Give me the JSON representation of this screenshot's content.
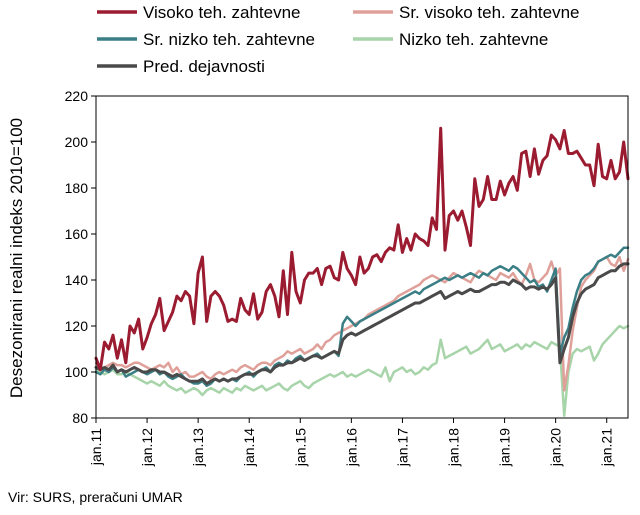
{
  "chart_data": {
    "type": "line",
    "ylabel": "Desezonirani realni indeks 2010=100",
    "xlabel": "",
    "ylim": [
      80,
      220
    ],
    "yticks": [
      80,
      100,
      120,
      140,
      160,
      180,
      200,
      220
    ],
    "xticks": [
      "jan.11",
      "jan.12",
      "jan.13",
      "jan.14",
      "jan.15",
      "jan.16",
      "jan.17",
      "jan.18",
      "jan.19",
      "jan.20",
      "jan.21"
    ],
    "grid": false,
    "legend_position": "top",
    "source": "Vir: SURS, preračuni UMAR",
    "x_start": "2011-01",
    "series": [
      {
        "name": "Visoko teh. zahtevne",
        "color": "#9b1b30",
        "values": [
          106,
          101,
          113,
          110,
          116,
          106,
          114,
          104,
          120,
          117,
          123,
          110,
          115,
          121,
          125,
          132,
          118,
          122,
          126,
          133,
          131,
          135,
          133,
          121,
          143,
          150,
          122,
          133,
          135,
          133,
          129,
          122,
          123,
          122,
          132,
          127,
          125,
          134,
          123,
          126,
          135,
          138,
          133,
          124,
          144,
          125,
          152,
          135,
          130,
          140,
          143,
          143,
          145,
          138,
          145,
          146,
          141,
          140,
          152,
          145,
          142,
          138,
          150,
          143,
          145,
          150,
          151,
          148,
          152,
          154,
          153,
          164,
          152,
          158,
          153,
          160,
          158,
          157,
          155,
          167,
          162,
          206,
          153,
          168,
          170,
          166,
          170,
          163,
          155,
          184,
          172,
          175,
          185,
          175,
          175,
          183,
          177,
          182,
          185,
          179,
          195,
          196,
          185,
          197,
          186,
          192,
          194,
          203,
          201,
          197,
          205,
          195,
          195,
          196,
          193,
          190,
          190,
          181,
          199,
          185,
          184,
          192,
          184,
          187,
          200,
          184
        ],
        "stroke_width": 3
      },
      {
        "name": "Sr. visoko teh. zahtevne",
        "color": "#e0a09a",
        "values": [
          104,
          101,
          102,
          103,
          104,
          103,
          103,
          102,
          103,
          104,
          104,
          103,
          102,
          101,
          102,
          103,
          102,
          104,
          100,
          102,
          99,
          100,
          98,
          98,
          99,
          100,
          98,
          97,
          99,
          100,
          99,
          100,
          101,
          100,
          102,
          103,
          102,
          101,
          103,
          104,
          104,
          103,
          105,
          106,
          107,
          109,
          108,
          109,
          110,
          108,
          109,
          110,
          112,
          110,
          113,
          114,
          116,
          117,
          118,
          119,
          120,
          121,
          122,
          123,
          125,
          126,
          127,
          128,
          129,
          130,
          131,
          133,
          134,
          135,
          136,
          137,
          138,
          140,
          141,
          142,
          141,
          140,
          139,
          141,
          143,
          142,
          141,
          140,
          139,
          142,
          144,
          143,
          142,
          141,
          140,
          143,
          142,
          141,
          143,
          140,
          138,
          142,
          147,
          140,
          139,
          141,
          143,
          148,
          142,
          145,
          92,
          103,
          118,
          128,
          137,
          140,
          142,
          144,
          148,
          149,
          150,
          147,
          146,
          150,
          144,
          149
        ],
        "stroke_width": 2.5
      },
      {
        "name": "Sr. nizko teh. zahtevne",
        "color": "#3b7f86",
        "values": [
          100,
          99,
          101,
          100,
          102,
          100,
          101,
          98,
          99,
          100,
          101,
          100,
          99,
          100,
          101,
          99,
          100,
          98,
          97,
          98,
          99,
          97,
          96,
          95,
          95,
          96,
          94,
          95,
          97,
          96,
          97,
          96,
          97,
          96,
          98,
          99,
          100,
          98,
          100,
          101,
          102,
          100,
          103,
          104,
          103,
          105,
          104,
          106,
          107,
          105,
          106,
          107,
          108,
          106,
          107,
          108,
          109,
          107,
          121,
          124,
          122,
          120,
          122,
          123,
          124,
          125,
          126,
          127,
          128,
          129,
          130,
          131,
          132,
          133,
          134,
          135,
          134,
          136,
          137,
          138,
          139,
          140,
          141,
          140,
          141,
          142,
          141,
          142,
          143,
          142,
          141,
          143,
          142,
          144,
          145,
          146,
          145,
          144,
          146,
          145,
          143,
          141,
          139,
          140,
          137,
          138,
          135,
          140,
          145,
          108,
          115,
          119,
          128,
          135,
          140,
          142,
          143,
          145,
          148,
          149,
          150,
          151,
          150,
          152,
          154,
          154
        ],
        "stroke_width": 2.5
      },
      {
        "name": "Nizko teh. zahtevne",
        "color": "#a8d4aa",
        "values": [
          101,
          100,
          99,
          100,
          101,
          99,
          99,
          100,
          99,
          98,
          97,
          96,
          95,
          96,
          95,
          94,
          96,
          94,
          93,
          92,
          93,
          91,
          92,
          93,
          92,
          90,
          92,
          93,
          92,
          91,
          93,
          92,
          91,
          93,
          92,
          94,
          93,
          92,
          93,
          94,
          92,
          93,
          94,
          95,
          93,
          92,
          94,
          95,
          96,
          94,
          93,
          95,
          96,
          97,
          98,
          99,
          98,
          99,
          100,
          98,
          99,
          98,
          99,
          100,
          101,
          100,
          99,
          98,
          102,
          96,
          100,
          101,
          102,
          100,
          101,
          99,
          100,
          102,
          101,
          103,
          104,
          114,
          106,
          107,
          108,
          109,
          110,
          111,
          108,
          109,
          110,
          112,
          114,
          110,
          111,
          112,
          109,
          110,
          111,
          112,
          110,
          112,
          111,
          113,
          112,
          111,
          110,
          113,
          112,
          111,
          81,
          100,
          108,
          110,
          109,
          110,
          111,
          105,
          108,
          112,
          114,
          116,
          118,
          120,
          119,
          120
        ],
        "stroke_width": 2.5
      },
      {
        "name": "Pred. dejavnosti",
        "color": "#4a4a4a",
        "values": [
          102,
          101,
          102,
          101,
          103,
          100,
          101,
          100,
          101,
          102,
          101,
          100,
          100,
          101,
          101,
          100,
          100,
          99,
          98,
          99,
          98,
          97,
          96,
          96,
          96,
          97,
          95,
          96,
          97,
          96,
          97,
          96,
          97,
          97,
          98,
          99,
          99,
          99,
          100,
          101,
          101,
          100,
          102,
          103,
          103,
          104,
          104,
          105,
          106,
          105,
          106,
          107,
          107,
          106,
          107,
          108,
          109,
          108,
          114,
          116,
          117,
          116,
          117,
          118,
          119,
          120,
          121,
          122,
          123,
          124,
          125,
          126,
          127,
          128,
          129,
          130,
          130,
          131,
          132,
          133,
          134,
          135,
          132,
          133,
          134,
          135,
          134,
          135,
          136,
          135,
          135,
          136,
          137,
          138,
          138,
          139,
          139,
          138,
          140,
          139,
          138,
          136,
          137,
          137,
          136,
          137,
          136,
          138,
          141,
          104,
          110,
          115,
          124,
          130,
          134,
          136,
          137,
          138,
          141,
          142,
          143,
          144,
          144,
          146,
          147,
          147
        ],
        "stroke_width": 3
      }
    ]
  }
}
